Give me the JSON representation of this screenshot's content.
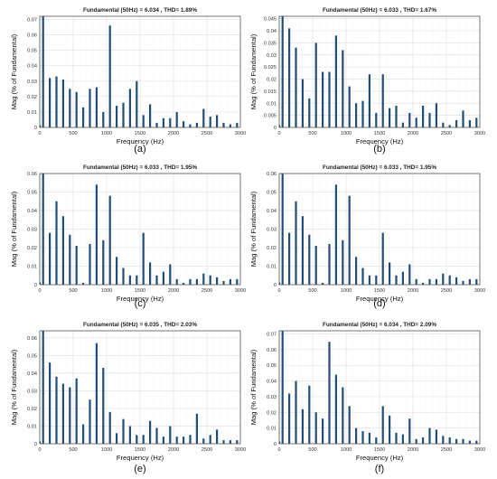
{
  "styles": {
    "bar_color": "#1f4e79",
    "grid_color": "#e2e2e2",
    "frame_color": "#555555"
  },
  "chart_data": [
    {
      "type": "bar",
      "caption": "(a)",
      "title": "Fundamental (50Hz) = 6.034 , THD= 1.89%",
      "xlabel": "Frequency (Hz)",
      "ylabel": "Mag (% of Fundamental)",
      "xlim": [
        0,
        3000
      ],
      "ylim": [
        0,
        0.072
      ],
      "xticks": [
        "0",
        "500",
        "1000",
        "1500",
        "2000",
        "2500",
        "3000"
      ],
      "yticks": [
        "0",
        "0.01",
        "0.02",
        "0.03",
        "0.04",
        "0.05",
        "0.06",
        "0.07"
      ],
      "x": [
        50,
        150,
        250,
        350,
        450,
        550,
        650,
        750,
        850,
        950,
        1050,
        1150,
        1250,
        1350,
        1450,
        1550,
        1650,
        1750,
        1850,
        1950,
        2050,
        2150,
        2250,
        2350,
        2450,
        2550,
        2650,
        2750,
        2850,
        2950
      ],
      "values": [
        0.072,
        0.032,
        0.033,
        0.031,
        0.025,
        0.023,
        0.013,
        0.025,
        0.026,
        0.01,
        0.066,
        0.014,
        0.016,
        0.025,
        0.03,
        0.008,
        0.015,
        0.003,
        0.006,
        0.006,
        0.01,
        0.004,
        0.002,
        0.003,
        0.012,
        0.007,
        0.008,
        0.003,
        0.002,
        0.003
      ]
    },
    {
      "type": "bar",
      "caption": "(b)",
      "title": "Fundamental (50Hz) = 6.033 , THD= 1.67%",
      "xlabel": "Frequency (Hz)",
      "ylabel": "Mag (% of Fundamental)",
      "xlim": [
        0,
        3000
      ],
      "ylim": [
        0,
        0.046
      ],
      "xticks": [
        "0",
        "500",
        "1000",
        "1500",
        "2000",
        "2500",
        "3000"
      ],
      "yticks": [
        "0",
        "0.005",
        "0.01",
        "0.015",
        "0.02",
        "0.025",
        "0.03",
        "0.035",
        "0.04",
        "0.045"
      ],
      "x": [
        50,
        150,
        250,
        350,
        450,
        550,
        650,
        750,
        850,
        950,
        1050,
        1150,
        1250,
        1350,
        1450,
        1550,
        1650,
        1750,
        1850,
        1950,
        2050,
        2150,
        2250,
        2350,
        2450,
        2550,
        2650,
        2750,
        2850,
        2950
      ],
      "values": [
        0.046,
        0.041,
        0.033,
        0.02,
        0.012,
        0.035,
        0.023,
        0.023,
        0.038,
        0.032,
        0.017,
        0.01,
        0.011,
        0.022,
        0.006,
        0.022,
        0.008,
        0.009,
        0.002,
        0.006,
        0.004,
        0.009,
        0.006,
        0.01,
        0.002,
        0.001,
        0.003,
        0.007,
        0.003,
        0.004
      ]
    },
    {
      "type": "bar",
      "caption": "(c)",
      "title": "Fundamental (50Hz) = 6.033 , THD= 1.95%",
      "xlabel": "Frequency (Hz)",
      "ylabel": "Mag (% of Fundamental)",
      "xlim": [
        0,
        3000
      ],
      "ylim": [
        0,
        0.06
      ],
      "xticks": [
        "0",
        "500",
        "1000",
        "1500",
        "2000",
        "2500",
        "3000"
      ],
      "yticks": [
        "0",
        "0.01",
        "0.02",
        "0.03",
        "0.04",
        "0.05",
        "0.06"
      ],
      "x": [
        50,
        150,
        250,
        350,
        450,
        550,
        650,
        750,
        850,
        950,
        1050,
        1150,
        1250,
        1350,
        1450,
        1550,
        1650,
        1750,
        1850,
        1950,
        2050,
        2150,
        2250,
        2350,
        2450,
        2550,
        2650,
        2750,
        2850,
        2950
      ],
      "values": [
        0.06,
        0.028,
        0.045,
        0.037,
        0.027,
        0.021,
        0.001,
        0.022,
        0.054,
        0.024,
        0.048,
        0.015,
        0.009,
        0.005,
        0.005,
        0.028,
        0.012,
        0.005,
        0.007,
        0.011,
        0.003,
        0.001,
        0.003,
        0.003,
        0.006,
        0.005,
        0.004,
        0.002,
        0.003,
        0.003
      ]
    },
    {
      "type": "bar",
      "caption": "(d)",
      "title": "Fundamental (50Hz) = 6.033 , THD= 1.95%",
      "xlabel": "Frequency (Hz)",
      "ylabel": "Mag (% of Fundamental)",
      "xlim": [
        0,
        3000
      ],
      "ylim": [
        0,
        0.06
      ],
      "xticks": [
        "0",
        "500",
        "1000",
        "1500",
        "2000",
        "2500",
        "3000"
      ],
      "yticks": [
        "0",
        "0.01",
        "0.02",
        "0.03",
        "0.04",
        "0.05",
        "0.06"
      ],
      "x": [
        50,
        150,
        250,
        350,
        450,
        550,
        650,
        750,
        850,
        950,
        1050,
        1150,
        1250,
        1350,
        1450,
        1550,
        1650,
        1750,
        1850,
        1950,
        2050,
        2150,
        2250,
        2350,
        2450,
        2550,
        2650,
        2750,
        2850,
        2950
      ],
      "values": [
        0.06,
        0.028,
        0.045,
        0.037,
        0.027,
        0.021,
        0.001,
        0.022,
        0.054,
        0.024,
        0.048,
        0.015,
        0.009,
        0.005,
        0.005,
        0.028,
        0.012,
        0.005,
        0.007,
        0.011,
        0.003,
        0.001,
        0.003,
        0.003,
        0.006,
        0.005,
        0.004,
        0.002,
        0.003,
        0.003
      ]
    },
    {
      "type": "bar",
      "caption": "(e)",
      "title": "Fundamental (50Hz) = 6.035 , THD= 2.03%",
      "xlabel": "Frequency (Hz)",
      "ylabel": "Mag (% of Fundamental)",
      "xlim": [
        0,
        3000
      ],
      "ylim": [
        0,
        0.064
      ],
      "xticks": [
        "0",
        "500",
        "1000",
        "1500",
        "2000",
        "2500",
        "3000"
      ],
      "yticks": [
        "0",
        "0.01",
        "0.02",
        "0.03",
        "0.04",
        "0.05",
        "0.06"
      ],
      "x": [
        50,
        150,
        250,
        350,
        450,
        550,
        650,
        750,
        850,
        950,
        1050,
        1150,
        1250,
        1350,
        1450,
        1550,
        1650,
        1750,
        1850,
        1950,
        2050,
        2150,
        2250,
        2350,
        2450,
        2550,
        2650,
        2750,
        2850,
        2950
      ],
      "values": [
        0.064,
        0.046,
        0.038,
        0.034,
        0.032,
        0.037,
        0.011,
        0.025,
        0.057,
        0.043,
        0.018,
        0.006,
        0.014,
        0.01,
        0.005,
        0.005,
        0.013,
        0.009,
        0.004,
        0.01,
        0.004,
        0.004,
        0.005,
        0.017,
        0.003,
        0.005,
        0.008,
        0.002,
        0.002,
        0.002
      ]
    },
    {
      "type": "bar",
      "caption": "(f)",
      "title": "Fundamental (50Hz) = 6.034 , THD= 2.09%",
      "xlabel": "Frequency (Hz)",
      "ylabel": "Mag (% of Fundamental)",
      "xlim": [
        0,
        3000
      ],
      "ylim": [
        0,
        0.072
      ],
      "xticks": [
        "0",
        "500",
        "1000",
        "1500",
        "2000",
        "2500",
        "3000"
      ],
      "yticks": [
        "0",
        "0.01",
        "0.02",
        "0.03",
        "0.04",
        "0.05",
        "0.06",
        "0.07"
      ],
      "x": [
        50,
        150,
        250,
        350,
        450,
        550,
        650,
        750,
        850,
        950,
        1050,
        1150,
        1250,
        1350,
        1450,
        1550,
        1650,
        1750,
        1850,
        1950,
        2050,
        2150,
        2250,
        2350,
        2450,
        2550,
        2650,
        2750,
        2850,
        2950
      ],
      "values": [
        0.072,
        0.032,
        0.04,
        0.022,
        0.037,
        0.02,
        0.016,
        0.065,
        0.044,
        0.036,
        0.024,
        0.01,
        0.008,
        0.007,
        0.004,
        0.024,
        0.018,
        0.007,
        0.006,
        0.016,
        0.003,
        0.004,
        0.01,
        0.009,
        0.005,
        0.004,
        0.003,
        0.003,
        0.002,
        0.002
      ]
    }
  ]
}
